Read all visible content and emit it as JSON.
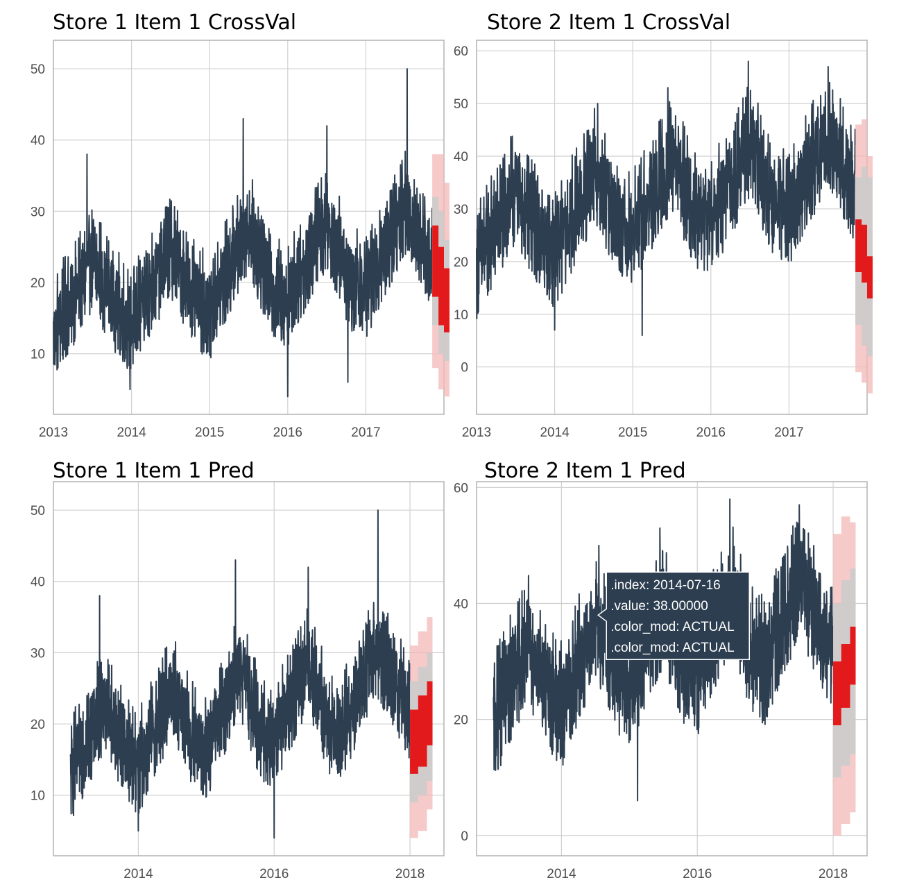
{
  "colors": {
    "actual": "#2c3e50",
    "prediction": "#e31a1c",
    "band_inner": "#cccccc",
    "band_outer": "#f4b8b8",
    "grid": "#d0d0d0",
    "frame": "#b3b3b3",
    "tooltip_bg": "#2c3e50"
  },
  "chart_data": [
    {
      "type": "line",
      "title": "Store 1 Item 1 CrossVal",
      "xlim": [
        2013.0,
        2018.0
      ],
      "ylim": [
        1.5,
        54
      ],
      "x_ticks": [
        2013,
        2014,
        2015,
        2016,
        2017
      ],
      "x_tick_labels": [
        "2013",
        "2014",
        "2015",
        "2016",
        "2017"
      ],
      "y_ticks": [
        10,
        20,
        30,
        40,
        50
      ],
      "y_tick_labels": [
        "10",
        "20",
        "30",
        "40",
        "50"
      ],
      "series": [
        {
          "role": "actual",
          "x_range": [
            2013.0,
            2017.85
          ],
          "trend": [
            [
              2013.0,
              12
            ],
            [
              2013.5,
              22
            ],
            [
              2013.8,
              16
            ],
            [
              2014.0,
              13
            ],
            [
              2014.5,
              24
            ],
            [
              2014.8,
              17
            ],
            [
              2015.0,
              15
            ],
            [
              2015.5,
              27
            ],
            [
              2015.8,
              18
            ],
            [
              2016.0,
              17
            ],
            [
              2016.5,
              28
            ],
            [
              2016.8,
              19
            ],
            [
              2017.0,
              18
            ],
            [
              2017.5,
              30
            ],
            [
              2017.85,
              22
            ]
          ],
          "spread": 6,
          "min": 4,
          "max": 50,
          "spikes": [
            [
              2013.43,
              38
            ],
            [
              2015.43,
              43
            ],
            [
              2016.5,
              42
            ],
            [
              2017.53,
              50
            ],
            [
              2013.98,
              5
            ],
            [
              2016.0,
              4
            ],
            [
              2016.77,
              6
            ]
          ]
        },
        {
          "role": "forecast",
          "x": [
            2017.85,
            2017.93,
            2018.0
          ],
          "y_low": [
            18,
            14,
            13
          ],
          "y_high": [
            28,
            25,
            22
          ],
          "inner_low": [
            14,
            10,
            9
          ],
          "inner_high": [
            32,
            30,
            26
          ],
          "outer_low": [
            8,
            5,
            4
          ],
          "outer_high": [
            38,
            38,
            34
          ]
        }
      ]
    },
    {
      "type": "line",
      "title": "Store 2 Item 1 CrossVal",
      "xlim": [
        2013.0,
        2018.0
      ],
      "ylim": [
        -9,
        62
      ],
      "x_ticks": [
        2013,
        2014,
        2015,
        2016,
        2017
      ],
      "x_tick_labels": [
        "2013",
        "2014",
        "2015",
        "2016",
        "2017"
      ],
      "y_ticks": [
        0,
        10,
        20,
        30,
        40,
        50,
        60
      ],
      "y_tick_labels": [
        "0",
        "10",
        "20",
        "30",
        "40",
        "50",
        "60"
      ],
      "series": [
        {
          "role": "actual",
          "x_range": [
            2013.0,
            2017.85
          ],
          "trend": [
            [
              2013.0,
              18
            ],
            [
              2013.5,
              32
            ],
            [
              2013.8,
              24
            ],
            [
              2014.0,
              20
            ],
            [
              2014.5,
              36
            ],
            [
              2014.8,
              27
            ],
            [
              2015.0,
              24
            ],
            [
              2015.5,
              38
            ],
            [
              2015.8,
              28
            ],
            [
              2016.0,
              26
            ],
            [
              2016.5,
              41
            ],
            [
              2016.8,
              30
            ],
            [
              2017.0,
              28
            ],
            [
              2017.5,
              43
            ],
            [
              2017.85,
              32
            ]
          ],
          "spread": 9,
          "min": 6,
          "max": 58,
          "spikes": [
            [
              2014.55,
              50
            ],
            [
              2015.45,
              53
            ],
            [
              2016.48,
              58
            ],
            [
              2017.5,
              57
            ],
            [
              2014.0,
              7
            ],
            [
              2015.12,
              6
            ]
          ]
        },
        {
          "role": "forecast",
          "x": [
            2017.85,
            2017.93,
            2018.0
          ],
          "y_low": [
            18,
            16,
            13
          ],
          "y_high": [
            28,
            27,
            21
          ],
          "inner_low": [
            8,
            4,
            2
          ],
          "inner_high": [
            36,
            38,
            36
          ],
          "outer_low": [
            -1,
            -3,
            -5
          ],
          "outer_high": [
            46,
            47,
            40
          ]
        }
      ]
    },
    {
      "type": "line",
      "title": "Store 1 Item 1 Pred",
      "xlim": [
        2012.75,
        2018.5
      ],
      "ylim": [
        1.5,
        54
      ],
      "x_ticks": [
        2014,
        2016,
        2018
      ],
      "x_tick_labels": [
        "2014",
        "2016",
        "2018"
      ],
      "y_ticks": [
        10,
        20,
        30,
        40,
        50
      ],
      "y_tick_labels": [
        "10",
        "20",
        "30",
        "40",
        "50"
      ],
      "series": [
        {
          "role": "actual",
          "x_range": [
            2013.0,
            2018.0
          ],
          "trend": [
            [
              2013.0,
              12
            ],
            [
              2013.5,
              22
            ],
            [
              2013.8,
              16
            ],
            [
              2014.0,
              13
            ],
            [
              2014.5,
              24
            ],
            [
              2014.8,
              17
            ],
            [
              2015.0,
              15
            ],
            [
              2015.5,
              27
            ],
            [
              2015.8,
              18
            ],
            [
              2016.0,
              17
            ],
            [
              2016.5,
              28
            ],
            [
              2016.8,
              19
            ],
            [
              2017.0,
              18
            ],
            [
              2017.5,
              30
            ],
            [
              2018.0,
              21
            ]
          ],
          "spread": 6,
          "min": 4,
          "max": 50,
          "spikes": [
            [
              2013.43,
              38
            ],
            [
              2015.43,
              43
            ],
            [
              2016.5,
              42
            ],
            [
              2017.53,
              50
            ],
            [
              2014.0,
              5
            ],
            [
              2016.0,
              4
            ]
          ]
        },
        {
          "role": "forecast",
          "x": [
            2018.0,
            2018.12,
            2018.25
          ],
          "y_low": [
            13,
            14,
            17
          ],
          "y_high": [
            22,
            24,
            26
          ],
          "inner_low": [
            9,
            10,
            12
          ],
          "inner_high": [
            26,
            28,
            30
          ],
          "outer_low": [
            4,
            5,
            8
          ],
          "outer_high": [
            31,
            33,
            35
          ]
        }
      ]
    },
    {
      "type": "line",
      "title": "Store 2 Item 1 Pred",
      "xlim": [
        2012.75,
        2018.5
      ],
      "ylim": [
        -3.5,
        61
      ],
      "x_ticks": [
        2014,
        2016,
        2018
      ],
      "x_tick_labels": [
        "2014",
        "2016",
        "2018"
      ],
      "y_ticks": [
        0,
        20,
        40,
        60
      ],
      "y_tick_labels": [
        "0",
        "20",
        "40",
        "60"
      ],
      "series": [
        {
          "role": "actual",
          "x_range": [
            2013.0,
            2018.0
          ],
          "trend": [
            [
              2013.0,
              18
            ],
            [
              2013.5,
              32
            ],
            [
              2013.8,
              24
            ],
            [
              2014.0,
              20
            ],
            [
              2014.5,
              36
            ],
            [
              2014.8,
              27
            ],
            [
              2015.0,
              24
            ],
            [
              2015.5,
              38
            ],
            [
              2015.8,
              28
            ],
            [
              2016.0,
              26
            ],
            [
              2016.5,
              41
            ],
            [
              2016.8,
              30
            ],
            [
              2017.0,
              28
            ],
            [
              2017.5,
              43
            ],
            [
              2018.0,
              30
            ]
          ],
          "spread": 9,
          "min": 6,
          "max": 58,
          "spikes": [
            [
              2014.55,
              50
            ],
            [
              2015.45,
              53
            ],
            [
              2016.48,
              58
            ],
            [
              2017.5,
              57
            ],
            [
              2015.12,
              6
            ]
          ]
        },
        {
          "role": "forecast",
          "x": [
            2018.0,
            2018.12,
            2018.25
          ],
          "y_low": [
            19,
            22,
            26
          ],
          "y_high": [
            30,
            33,
            36
          ],
          "inner_low": [
            10,
            12,
            14
          ],
          "inner_high": [
            40,
            44,
            46
          ],
          "outer_low": [
            0,
            2,
            4
          ],
          "outer_high": [
            52,
            55,
            54
          ]
        }
      ],
      "tooltip": {
        "lines": [
          ".index: 2014-07-16",
          ".value: 38.00000",
          ".color_mod: ACTUAL",
          ".color_mod: ACTUAL"
        ],
        "anchor": [
          2014.54,
          38
        ]
      }
    }
  ]
}
